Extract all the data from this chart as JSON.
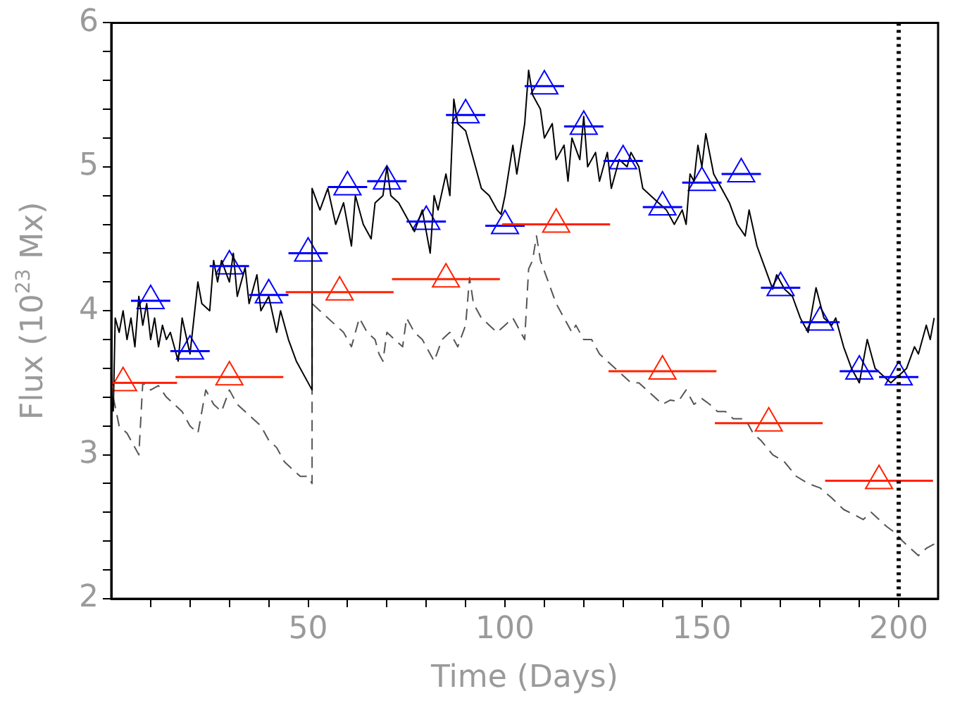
{
  "chart_data": {
    "type": "line",
    "xlabel": "Time (Days)",
    "ylabel": "Flux (10$^{23}$ Mx)",
    "xlim": [
      0,
      210
    ],
    "ylim": [
      2,
      6
    ],
    "xticks": [
      {
        "value": 10,
        "label": null
      },
      {
        "value": 20,
        "label": null
      },
      {
        "value": 30,
        "label": null
      },
      {
        "value": 40,
        "label": null
      },
      50,
      {
        "value": 60,
        "label": null
      },
      {
        "value": 70,
        "label": null
      },
      {
        "value": 80,
        "label": null
      },
      {
        "value": 90,
        "label": null
      },
      100,
      {
        "value": 110,
        "label": null
      },
      {
        "value": 120,
        "label": null
      },
      {
        "value": 130,
        "label": null
      },
      {
        "value": 140,
        "label": null
      },
      150,
      {
        "value": 160,
        "label": null
      },
      {
        "value": 170,
        "label": null
      },
      {
        "value": 180,
        "label": null
      },
      {
        "value": 190,
        "label": null
      },
      200
    ],
    "yticks": [
      2,
      {
        "value": 2.2,
        "label": null
      },
      {
        "value": 2.4,
        "label": null
      },
      {
        "value": 2.6,
        "label": null
      },
      {
        "value": 2.8,
        "label": null
      },
      3,
      {
        "value": 3.2,
        "label": null
      },
      {
        "value": 3.4,
        "label": null
      },
      {
        "value": 3.6,
        "label": null
      },
      {
        "value": 3.8,
        "label": null
      },
      4,
      {
        "value": 4.2,
        "label": null
      },
      {
        "value": 4.4,
        "label": null
      },
      {
        "value": 4.6,
        "label": null
      },
      {
        "value": 4.8,
        "label": null
      },
      5,
      {
        "value": 5.2,
        "label": null
      },
      {
        "value": 5.4,
        "label": null
      },
      {
        "value": 5.6,
        "label": null
      },
      {
        "value": 5.8,
        "label": null
      },
      6
    ],
    "grid": false,
    "legend": false,
    "ref_lines": [
      {
        "axis": "x",
        "value": 200,
        "color": "#000000",
        "line_style": "dotted"
      }
    ],
    "series": [
      {
        "type": "line",
        "color": "#000000",
        "marker": "none",
        "line_style": "solid",
        "x": [
          0.5,
          1,
          2,
          3,
          4,
          5,
          6,
          7,
          8,
          9,
          10,
          11,
          12,
          13,
          14,
          15,
          17,
          18,
          20,
          22,
          23,
          25,
          26,
          27,
          28,
          30,
          31,
          32,
          34,
          35,
          37,
          38,
          40,
          42,
          43,
          45,
          47,
          51,
          51,
          53,
          55,
          57,
          59,
          61,
          62,
          64,
          66,
          67,
          69,
          70,
          71,
          73,
          75,
          77,
          79,
          81,
          82,
          83,
          85,
          86,
          87,
          88,
          90,
          92,
          94,
          96,
          98,
          99,
          100,
          102,
          103,
          105,
          106,
          107,
          109,
          110,
          112,
          113,
          115,
          116,
          117,
          119,
          120,
          121,
          123,
          124,
          126,
          127,
          129,
          131,
          132,
          134,
          135,
          137,
          139,
          141,
          143,
          145,
          146,
          147,
          148,
          149,
          150,
          151,
          153,
          155,
          157,
          159,
          161,
          162,
          164,
          166,
          168,
          169,
          171,
          173,
          175,
          177,
          179,
          181,
          183,
          184,
          186,
          188,
          190,
          191,
          192,
          194,
          196,
          198,
          200,
          202,
          204,
          205,
          207,
          208,
          209
        ],
        "values": [
          3.3,
          3.95,
          3.85,
          4.0,
          3.8,
          3.95,
          3.75,
          4.1,
          3.9,
          4.05,
          3.8,
          3.95,
          3.75,
          3.9,
          3.8,
          3.85,
          3.65,
          3.95,
          3.7,
          4.2,
          4.05,
          4.0,
          4.35,
          4.2,
          4.35,
          4.2,
          4.4,
          4.1,
          4.3,
          4.05,
          4.25,
          4.0,
          4.1,
          3.85,
          4.0,
          3.8,
          3.65,
          3.45,
          4.85,
          4.7,
          4.85,
          4.6,
          4.75,
          4.45,
          4.8,
          4.6,
          4.5,
          4.75,
          4.8,
          5.0,
          4.8,
          4.75,
          4.65,
          4.55,
          4.7,
          4.4,
          4.8,
          4.7,
          4.95,
          4.8,
          5.47,
          5.3,
          5.25,
          5.05,
          4.85,
          4.8,
          4.7,
          4.67,
          4.8,
          5.15,
          4.95,
          5.3,
          5.67,
          5.5,
          5.4,
          5.2,
          5.3,
          5.05,
          5.15,
          4.9,
          5.2,
          5.05,
          5.35,
          5.0,
          5.1,
          4.9,
          5.1,
          4.85,
          5.05,
          5.0,
          5.1,
          5.0,
          4.85,
          4.8,
          4.75,
          4.7,
          4.6,
          4.7,
          4.6,
          4.95,
          4.9,
          5.15,
          5.0,
          5.23,
          4.95,
          4.85,
          4.75,
          4.6,
          4.52,
          4.7,
          4.45,
          4.3,
          4.15,
          4.25,
          4.15,
          4.1,
          3.95,
          3.85,
          4.16,
          3.95,
          3.9,
          3.95,
          3.75,
          3.6,
          3.5,
          3.65,
          3.8,
          3.6,
          3.55,
          3.5,
          3.55,
          3.6,
          3.75,
          3.7,
          3.9,
          3.8,
          3.95
        ]
      },
      {
        "type": "line",
        "color": "#555555",
        "marker": "none",
        "line_style": "dashed",
        "x": [
          0.5,
          2,
          4,
          6,
          7,
          8,
          10,
          12,
          14,
          16,
          18,
          20,
          22,
          24,
          26,
          28,
          30,
          32,
          34,
          36,
          38,
          40,
          42,
          44,
          46,
          48,
          50,
          51,
          51,
          53,
          55,
          57,
          59,
          61,
          63,
          65,
          67,
          68,
          69,
          70,
          72,
          74,
          75,
          77,
          79,
          81,
          82,
          84,
          86,
          88,
          90,
          91,
          92,
          94,
          96,
          98,
          100,
          102,
          104,
          105,
          106,
          107,
          108,
          109,
          111,
          113,
          115,
          117,
          118,
          120,
          122,
          124,
          126,
          128,
          130,
          132,
          134,
          136,
          138,
          140,
          142,
          144,
          146,
          148,
          150,
          152,
          154,
          156,
          158,
          161,
          163,
          165,
          168,
          171,
          174,
          177,
          180,
          183,
          186,
          189,
          191,
          193,
          195,
          197,
          199,
          201,
          203,
          205,
          207,
          209
        ],
        "values": [
          3.4,
          3.2,
          3.15,
          3.05,
          3.0,
          3.5,
          3.45,
          3.48,
          3.4,
          3.35,
          3.3,
          3.2,
          3.15,
          3.45,
          3.35,
          3.3,
          3.45,
          3.35,
          3.3,
          3.25,
          3.2,
          3.1,
          3.05,
          2.95,
          2.9,
          2.85,
          2.85,
          2.8,
          4.05,
          4.0,
          3.95,
          3.9,
          3.85,
          3.75,
          3.95,
          3.85,
          3.8,
          3.7,
          3.65,
          3.85,
          3.8,
          3.75,
          3.95,
          3.85,
          3.8,
          3.7,
          3.65,
          3.8,
          3.85,
          3.75,
          3.9,
          4.23,
          4.05,
          3.95,
          3.9,
          3.85,
          3.9,
          3.95,
          3.85,
          3.8,
          4.29,
          4.35,
          4.52,
          4.35,
          4.2,
          4.05,
          3.95,
          3.85,
          3.9,
          3.8,
          3.8,
          3.7,
          3.65,
          3.6,
          3.55,
          3.5,
          3.5,
          3.45,
          3.4,
          3.35,
          3.38,
          3.37,
          3.45,
          3.35,
          3.39,
          3.35,
          3.3,
          3.3,
          3.25,
          3.25,
          3.15,
          3.1,
          3.0,
          2.95,
          2.85,
          2.8,
          2.77,
          2.7,
          2.62,
          2.58,
          2.55,
          2.6,
          2.55,
          2.5,
          2.46,
          2.4,
          2.35,
          2.3,
          2.35,
          2.38
        ]
      },
      {
        "type": "scatter",
        "color": "#0000ff",
        "marker": "triangle",
        "x": [
          10,
          20,
          30,
          40,
          50,
          60,
          70,
          80,
          90,
          100,
          110,
          120,
          130,
          140,
          150,
          160,
          170,
          180,
          190,
          200
        ],
        "values": [
          4.07,
          3.72,
          4.31,
          4.11,
          4.4,
          4.86,
          4.9,
          4.62,
          5.36,
          4.59,
          5.56,
          5.28,
          5.04,
          4.72,
          4.89,
          4.95,
          4.16,
          3.92,
          3.58,
          3.54
        ],
        "xerrors": [
          5,
          5,
          5,
          5,
          5,
          5,
          5,
          5,
          5,
          5,
          5,
          5,
          5,
          5,
          5,
          5,
          5,
          5,
          5,
          5
        ]
      },
      {
        "type": "scatter",
        "color": "#ff2200",
        "marker": "triangle",
        "x": [
          3,
          30,
          58,
          85,
          113,
          140,
          167,
          195
        ],
        "values": [
          3.5,
          3.54,
          4.13,
          4.22,
          4.6,
          3.58,
          3.22,
          2.82
        ],
        "xerrors": [
          13.7,
          13.7,
          13.7,
          13.7,
          13.7,
          13.7,
          13.7,
          13.7
        ]
      }
    ]
  }
}
